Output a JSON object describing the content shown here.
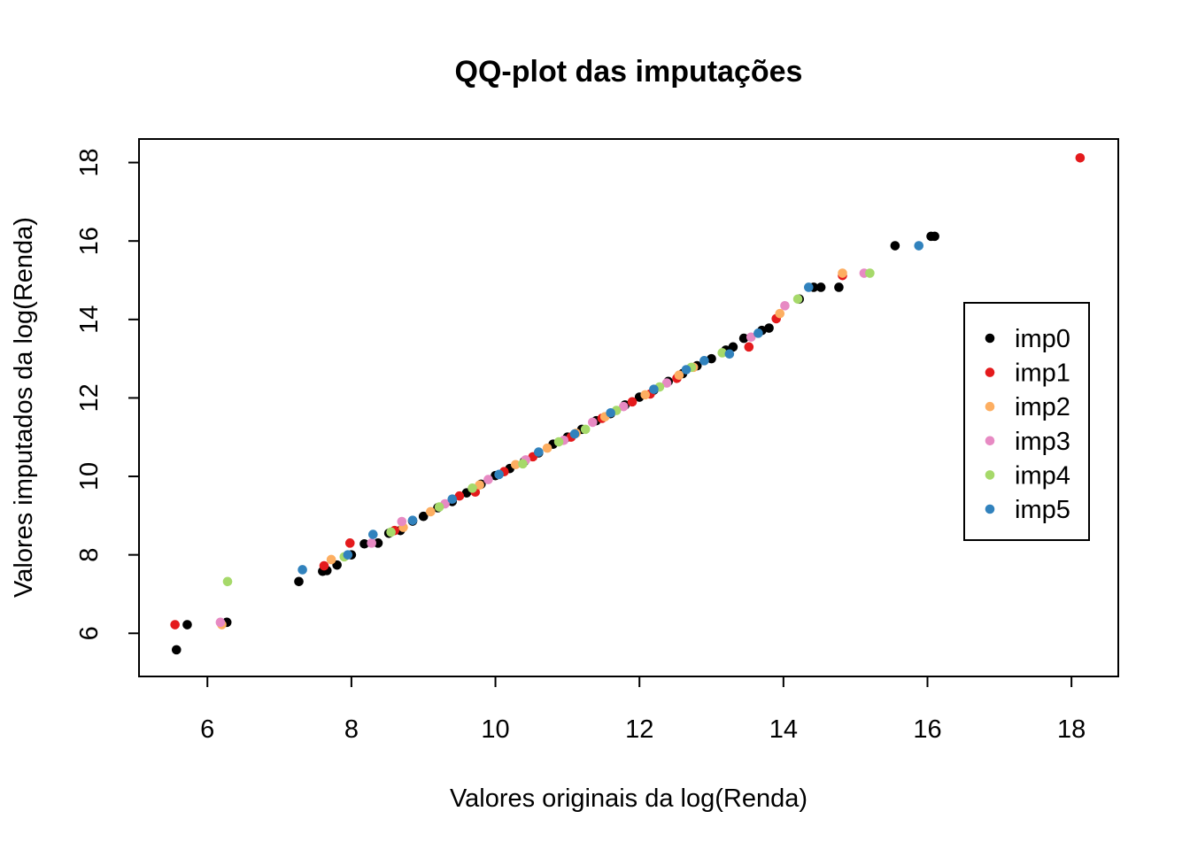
{
  "chart_data": {
    "type": "scatter",
    "title": "QQ-plot das imputações",
    "xlabel": "Valores originais da log(Renda)",
    "ylabel": "Valores imputados da log(Renda)",
    "xlim": [
      5.05,
      18.65
    ],
    "ylim": [
      4.9,
      18.6
    ],
    "xticks": [
      6,
      8,
      10,
      12,
      14,
      16,
      18
    ],
    "yticks": [
      6,
      8,
      10,
      12,
      14,
      16,
      18
    ],
    "grid": false,
    "legend_position": "right",
    "series": [
      {
        "name": "imp0",
        "color": "#000000",
        "points": [
          [
            5.57,
            5.58
          ],
          [
            5.72,
            6.22
          ],
          [
            6.27,
            6.28
          ],
          [
            7.27,
            7.32
          ],
          [
            7.6,
            7.58
          ],
          [
            7.66,
            7.6
          ],
          [
            7.8,
            7.74
          ],
          [
            8.0,
            8.0
          ],
          [
            8.18,
            8.28
          ],
          [
            8.37,
            8.3
          ],
          [
            8.52,
            8.55
          ],
          [
            8.68,
            8.62
          ],
          [
            8.85,
            8.86
          ],
          [
            9.0,
            8.98
          ],
          [
            9.2,
            9.2
          ],
          [
            9.4,
            9.36
          ],
          [
            9.6,
            9.58
          ],
          [
            9.8,
            9.8
          ],
          [
            10.0,
            10.02
          ],
          [
            10.2,
            10.2
          ],
          [
            10.4,
            10.38
          ],
          [
            10.6,
            10.6
          ],
          [
            10.8,
            10.82
          ],
          [
            11.0,
            11.0
          ],
          [
            11.2,
            11.2
          ],
          [
            11.4,
            11.42
          ],
          [
            11.6,
            11.6
          ],
          [
            11.8,
            11.82
          ],
          [
            12.0,
            12.02
          ],
          [
            12.2,
            12.2
          ],
          [
            12.4,
            12.42
          ],
          [
            12.6,
            12.62
          ],
          [
            12.8,
            12.82
          ],
          [
            13.0,
            13.0
          ],
          [
            13.2,
            13.22
          ],
          [
            13.3,
            13.3
          ],
          [
            13.45,
            13.52
          ],
          [
            13.7,
            13.72
          ],
          [
            13.8,
            13.78
          ],
          [
            14.22,
            14.52
          ],
          [
            14.42,
            14.82
          ],
          [
            14.52,
            14.82
          ],
          [
            14.77,
            14.82
          ],
          [
            15.55,
            15.88
          ],
          [
            16.05,
            16.12
          ],
          [
            16.1,
            16.12
          ]
        ]
      },
      {
        "name": "imp1",
        "color": "#e41a1c",
        "points": [
          [
            5.55,
            6.22
          ],
          [
            7.62,
            7.72
          ],
          [
            7.98,
            8.3
          ],
          [
            8.6,
            8.62
          ],
          [
            9.5,
            9.5
          ],
          [
            9.72,
            9.6
          ],
          [
            10.12,
            10.12
          ],
          [
            10.52,
            10.5
          ],
          [
            11.05,
            11.0
          ],
          [
            11.48,
            11.48
          ],
          [
            11.9,
            11.9
          ],
          [
            12.15,
            12.1
          ],
          [
            12.52,
            12.5
          ],
          [
            13.52,
            13.3
          ],
          [
            13.9,
            14.02
          ],
          [
            14.82,
            15.12
          ],
          [
            18.12,
            18.12
          ]
        ]
      },
      {
        "name": "imp2",
        "color": "#fdae61",
        "points": [
          [
            6.2,
            6.22
          ],
          [
            7.72,
            7.88
          ],
          [
            8.72,
            8.7
          ],
          [
            9.1,
            9.1
          ],
          [
            9.78,
            9.78
          ],
          [
            10.28,
            10.3
          ],
          [
            10.72,
            10.72
          ],
          [
            11.12,
            11.1
          ],
          [
            11.52,
            11.52
          ],
          [
            12.08,
            12.08
          ],
          [
            12.55,
            12.58
          ],
          [
            12.75,
            12.78
          ],
          [
            13.95,
            14.15
          ],
          [
            14.82,
            15.18
          ]
        ]
      },
      {
        "name": "imp3",
        "color": "#e78ac3",
        "points": [
          [
            6.18,
            6.28
          ],
          [
            8.28,
            8.3
          ],
          [
            8.7,
            8.85
          ],
          [
            9.3,
            9.3
          ],
          [
            9.9,
            9.92
          ],
          [
            10.42,
            10.42
          ],
          [
            10.95,
            10.92
          ],
          [
            11.35,
            11.38
          ],
          [
            11.78,
            11.78
          ],
          [
            12.38,
            12.38
          ],
          [
            13.55,
            13.55
          ],
          [
            14.02,
            14.35
          ],
          [
            15.12,
            15.18
          ]
        ]
      },
      {
        "name": "imp4",
        "color": "#a6d96a",
        "points": [
          [
            6.28,
            7.32
          ],
          [
            7.9,
            7.95
          ],
          [
            8.55,
            8.58
          ],
          [
            9.22,
            9.22
          ],
          [
            9.68,
            9.7
          ],
          [
            10.38,
            10.32
          ],
          [
            10.88,
            10.88
          ],
          [
            11.25,
            11.2
          ],
          [
            11.68,
            11.68
          ],
          [
            12.28,
            12.28
          ],
          [
            12.72,
            12.78
          ],
          [
            13.15,
            13.15
          ],
          [
            14.2,
            14.52
          ],
          [
            15.2,
            15.18
          ]
        ]
      },
      {
        "name": "imp5",
        "color": "#3182bd",
        "points": [
          [
            7.32,
            7.62
          ],
          [
            7.95,
            8.0
          ],
          [
            8.3,
            8.52
          ],
          [
            8.85,
            8.88
          ],
          [
            9.4,
            9.42
          ],
          [
            10.05,
            10.05
          ],
          [
            10.6,
            10.62
          ],
          [
            11.1,
            11.08
          ],
          [
            11.6,
            11.62
          ],
          [
            12.2,
            12.22
          ],
          [
            12.65,
            12.72
          ],
          [
            12.9,
            12.95
          ],
          [
            13.25,
            13.12
          ],
          [
            13.65,
            13.65
          ],
          [
            14.35,
            14.82
          ],
          [
            15.88,
            15.88
          ]
        ]
      }
    ]
  }
}
